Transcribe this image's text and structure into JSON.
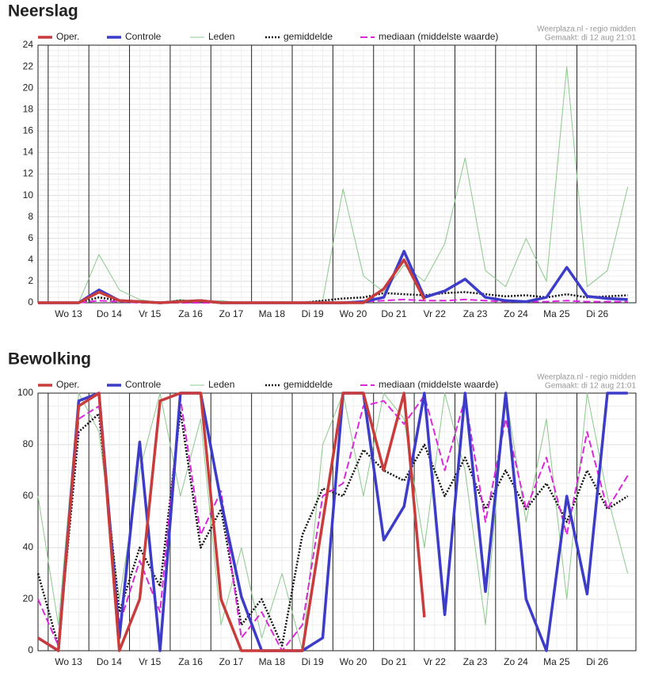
{
  "chart_data": [
    {
      "type": "line",
      "title": "Neerslag",
      "source": "Weerplaza.nl - regio midden",
      "made": "Gemaakt: di 12 aug 21:01",
      "x": [
        -0.25,
        0.25,
        0.75,
        1.25,
        1.75,
        2.25,
        2.75,
        3.25,
        3.75,
        4.25,
        4.75,
        5.25,
        5.75,
        6.25,
        6.75,
        7.25,
        7.75,
        8.25,
        8.75,
        9.25,
        9.75,
        10.25,
        10.75,
        11.25,
        11.75,
        12.25,
        12.75,
        13.25,
        13.75,
        14.25
      ],
      "xlim": [
        -0.25,
        14.45
      ],
      "xticks": [
        {
          "value": 0.5,
          "label": "Wo 13"
        },
        {
          "value": 1.5,
          "label": "Do 14"
        },
        {
          "value": 2.5,
          "label": "Vr 15"
        },
        {
          "value": 3.5,
          "label": "Za 16"
        },
        {
          "value": 4.5,
          "label": "Zo 17"
        },
        {
          "value": 5.5,
          "label": "Ma 18"
        },
        {
          "value": 6.5,
          "label": "Di 19"
        },
        {
          "value": 7.5,
          "label": "Wo 20"
        },
        {
          "value": 8.5,
          "label": "Do 21"
        },
        {
          "value": 9.5,
          "label": "Vr 22"
        },
        {
          "value": 10.5,
          "label": "Za 23"
        },
        {
          "value": 11.5,
          "label": "Zo 24"
        },
        {
          "value": 12.5,
          "label": "Ma 25"
        },
        {
          "value": 13.5,
          "label": "Di 26"
        }
      ],
      "ylim": [
        0,
        24
      ],
      "yticks": [
        0,
        2,
        4,
        6,
        8,
        10,
        12,
        14,
        16,
        18,
        20,
        22,
        24
      ],
      "grid": true,
      "series": [
        {
          "name": "Oper.",
          "color": "#c83c3c",
          "width": 3.5,
          "style": "solid",
          "values": [
            0,
            0,
            0,
            1.0,
            0.2,
            0.1,
            0,
            0.1,
            0.2,
            0,
            0,
            0,
            0,
            0,
            0,
            0,
            0,
            1.3,
            4.0,
            0.3,
            null,
            null,
            null,
            null,
            null,
            null,
            null,
            null,
            null,
            null
          ]
        },
        {
          "name": "Controle",
          "color": "#3c3cc8",
          "width": 3.5,
          "style": "solid",
          "values": [
            0,
            0,
            0,
            1.2,
            0.2,
            0.1,
            0,
            0.1,
            0.2,
            0,
            0,
            0,
            0,
            0,
            0,
            0,
            0.1,
            0.5,
            4.8,
            0.5,
            1.1,
            2.2,
            0.5,
            0.2,
            0.1,
            0.5,
            3.3,
            0.6,
            0.4,
            0.3
          ]
        },
        {
          "name": "Leden",
          "color": "#8cc88c",
          "width": 1,
          "style": "solid",
          "values": [
            0,
            0,
            0,
            4.5,
            1.2,
            0.3,
            0,
            0.3,
            0.1,
            0.2,
            0,
            0,
            0.1,
            0,
            0.2,
            10.6,
            2.5,
            1.0,
            3.5,
            2.0,
            5.5,
            13.5,
            3.0,
            1.5,
            6.0,
            2.0,
            22.0,
            1.5,
            3.0,
            10.8
          ]
        },
        {
          "name": "gemiddelde",
          "color": "#111111",
          "width": 2.5,
          "style": "dotted",
          "values": [
            0,
            0,
            0,
            0.5,
            0.2,
            0.1,
            0,
            0.2,
            0.1,
            0,
            0,
            0,
            0,
            0,
            0.2,
            0.4,
            0.5,
            0.9,
            0.8,
            0.7,
            0.9,
            1.0,
            0.8,
            0.6,
            0.7,
            0.5,
            0.8,
            0.5,
            0.6,
            0.7
          ]
        },
        {
          "name": "mediaan (middelste waarde)",
          "color": "#dc28dc",
          "width": 2,
          "style": "dashed",
          "values": [
            0,
            0,
            0,
            0.2,
            0.1,
            0,
            0,
            0,
            0,
            0,
            0,
            0,
            0,
            0,
            0,
            0,
            0.1,
            0.2,
            0.3,
            0.2,
            0.2,
            0.3,
            0.2,
            0.1,
            0.1,
            0.1,
            0.2,
            0.1,
            0.1,
            0.1
          ]
        }
      ]
    },
    {
      "type": "line",
      "title": "Bewolking",
      "source": "Weerplaza.nl - regio midden",
      "made": "Gemaakt: di 12 aug 21:01",
      "x": [
        -0.25,
        0.25,
        0.75,
        1.25,
        1.75,
        2.25,
        2.75,
        3.25,
        3.75,
        4.25,
        4.75,
        5.25,
        5.75,
        6.25,
        6.75,
        7.25,
        7.75,
        8.25,
        8.75,
        9.25,
        9.75,
        10.25,
        10.75,
        11.25,
        11.75,
        12.25,
        12.75,
        13.25,
        13.75,
        14.25
      ],
      "xlim": [
        -0.25,
        14.45
      ],
      "xticks": [
        {
          "value": 0.5,
          "label": "Wo 13"
        },
        {
          "value": 1.5,
          "label": "Do 14"
        },
        {
          "value": 2.5,
          "label": "Vr 15"
        },
        {
          "value": 3.5,
          "label": "Za 16"
        },
        {
          "value": 4.5,
          "label": "Zo 17"
        },
        {
          "value": 5.5,
          "label": "Ma 18"
        },
        {
          "value": 6.5,
          "label": "Di 19"
        },
        {
          "value": 7.5,
          "label": "Wo 20"
        },
        {
          "value": 8.5,
          "label": "Do 21"
        },
        {
          "value": 9.5,
          "label": "Vr 22"
        },
        {
          "value": 10.5,
          "label": "Za 23"
        },
        {
          "value": 11.5,
          "label": "Zo 24"
        },
        {
          "value": 12.5,
          "label": "Ma 25"
        },
        {
          "value": 13.5,
          "label": "Di 26"
        }
      ],
      "ylim": [
        0,
        100
      ],
      "yticks": [
        0,
        20,
        40,
        60,
        80,
        100
      ],
      "grid": true,
      "series": [
        {
          "name": "Oper.",
          "color": "#c83c3c",
          "width": 3.5,
          "style": "solid",
          "values": [
            5,
            0,
            95,
            100,
            0,
            20,
            97,
            100,
            100,
            20,
            0,
            0,
            0,
            0,
            50,
            100,
            100,
            70,
            100,
            13,
            null,
            null,
            null,
            null,
            null,
            null,
            null,
            null,
            null,
            null
          ]
        },
        {
          "name": "Controle",
          "color": "#3c3cc8",
          "width": 3.5,
          "style": "solid",
          "values": [
            5,
            0,
            97,
            100,
            5,
            81,
            0,
            100,
            100,
            58,
            21,
            0,
            0,
            0,
            5,
            100,
            100,
            43,
            56,
            100,
            14,
            100,
            23,
            100,
            20,
            0,
            60,
            22,
            100,
            100
          ]
        },
        {
          "name": "Leden",
          "color": "#8cc88c",
          "width": 1,
          "style": "solid",
          "values": [
            60,
            10,
            100,
            85,
            20,
            70,
            100,
            60,
            90,
            10,
            40,
            5,
            30,
            0,
            80,
            100,
            60,
            100,
            90,
            40,
            100,
            70,
            10,
            100,
            50,
            90,
            20,
            100,
            60,
            30
          ]
        },
        {
          "name": "gemiddelde",
          "color": "#111111",
          "width": 2.5,
          "style": "dotted",
          "values": [
            30,
            2,
            85,
            92,
            15,
            40,
            25,
            93,
            40,
            55,
            10,
            20,
            2,
            45,
            63,
            60,
            78,
            70,
            66,
            80,
            60,
            75,
            55,
            70,
            55,
            65,
            50,
            70,
            55,
            60
          ]
        },
        {
          "name": "mediaan (middelste waarde)",
          "color": "#dc28dc",
          "width": 2,
          "style": "dashed",
          "values": [
            20,
            2,
            90,
            95,
            10,
            35,
            15,
            98,
            45,
            62,
            5,
            15,
            0,
            10,
            60,
            65,
            95,
            97,
            88,
            99,
            70,
            98,
            50,
            90,
            55,
            75,
            45,
            85,
            55,
            68
          ]
        }
      ]
    }
  ]
}
